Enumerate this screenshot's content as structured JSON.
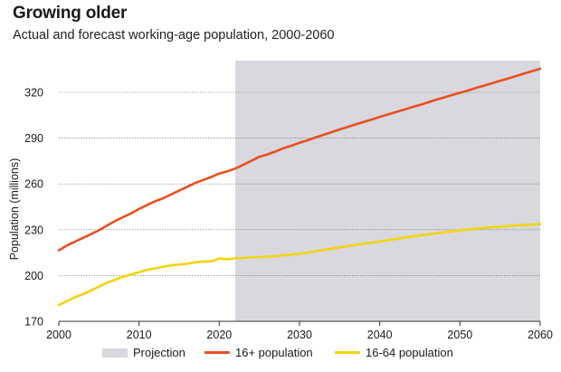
{
  "title": "Growing older",
  "subtitle": "Actual and forecast working-age population, 2000-2060",
  "chart_data": {
    "type": "line",
    "ylabel": "Population (millions)",
    "xlabel": "",
    "xlim": [
      2000,
      2060
    ],
    "ylim": [
      170,
      335
    ],
    "x_ticks": [
      2000,
      2010,
      2020,
      2030,
      2040,
      2050,
      2060
    ],
    "y_ticks": [
      170,
      200,
      230,
      260,
      290,
      320
    ],
    "grid": "horizontal",
    "projection_band": {
      "label": "Projection",
      "from": 2022,
      "to": 2060,
      "color": "#d9d8df"
    },
    "legend_position": "bottom",
    "series": [
      {
        "name": "16+ population",
        "color": "#e8501e",
        "x": [
          2000,
          2001,
          2002,
          2003,
          2004,
          2005,
          2006,
          2007,
          2008,
          2009,
          2010,
          2011,
          2012,
          2013,
          2014,
          2015,
          2016,
          2017,
          2018,
          2019,
          2020,
          2021,
          2022,
          2023,
          2024,
          2025,
          2026,
          2027,
          2028,
          2029,
          2030,
          2031,
          2032,
          2033,
          2034,
          2035,
          2036,
          2037,
          2038,
          2039,
          2040,
          2041,
          2042,
          2043,
          2044,
          2045,
          2046,
          2047,
          2048,
          2049,
          2050,
          2051,
          2052,
          2053,
          2054,
          2055,
          2056,
          2057,
          2058,
          2059,
          2060
        ],
        "values": [
          216.5,
          219.6,
          222.1,
          224.6,
          227.1,
          229.6,
          232.7,
          235.7,
          238.2,
          240.7,
          243.6,
          246.1,
          248.6,
          250.6,
          253.1,
          255.6,
          258.1,
          260.6,
          262.6,
          264.5,
          266.8,
          268.2,
          270.1,
          272.5,
          275.2,
          277.8,
          279.3,
          281.2,
          283.4,
          285.0,
          286.9,
          288.6,
          290.4,
          292.2,
          293.9,
          295.7,
          297.3,
          299.0,
          300.6,
          302.2,
          303.8,
          305.5,
          307.0,
          308.6,
          310.2,
          311.7,
          313.4,
          315.1,
          316.6,
          318.2,
          319.7,
          321.2,
          322.9,
          324.4,
          325.9,
          327.5,
          329.0,
          330.7,
          332.3,
          333.9,
          335.4
        ]
      },
      {
        "name": "16-64 population",
        "color": "#f2d40c",
        "x": [
          2000,
          2001,
          2002,
          2003,
          2004,
          2005,
          2006,
          2007,
          2008,
          2009,
          2010,
          2011,
          2012,
          2013,
          2014,
          2015,
          2016,
          2017,
          2018,
          2019,
          2020,
          2021,
          2022,
          2023,
          2024,
          2025,
          2026,
          2027,
          2028,
          2029,
          2030,
          2031,
          2032,
          2033,
          2034,
          2035,
          2036,
          2037,
          2038,
          2039,
          2040,
          2041,
          2042,
          2043,
          2044,
          2045,
          2046,
          2047,
          2048,
          2049,
          2050,
          2051,
          2052,
          2053,
          2054,
          2055,
          2056,
          2057,
          2058,
          2059,
          2060
        ],
        "values": [
          180.7,
          183.2,
          185.7,
          187.7,
          190.2,
          192.7,
          195.2,
          197.2,
          199.2,
          200.7,
          202.2,
          203.7,
          204.7,
          205.7,
          206.7,
          207.2,
          207.7,
          208.7,
          209.2,
          209.2,
          211.2,
          210.7,
          211.2,
          211.5,
          211.8,
          212.1,
          212.4,
          212.7,
          213.2,
          213.7,
          214.2,
          215.0,
          215.9,
          216.7,
          217.6,
          218.4,
          219.2,
          220.0,
          220.8,
          221.6,
          222.3,
          223.1,
          223.9,
          224.7,
          225.5,
          226.2,
          226.9,
          227.6,
          228.2,
          228.9,
          229.5,
          230.1,
          230.6,
          231.1,
          231.6,
          232.0,
          232.4,
          232.8,
          233.1,
          233.4,
          233.7
        ]
      }
    ]
  }
}
